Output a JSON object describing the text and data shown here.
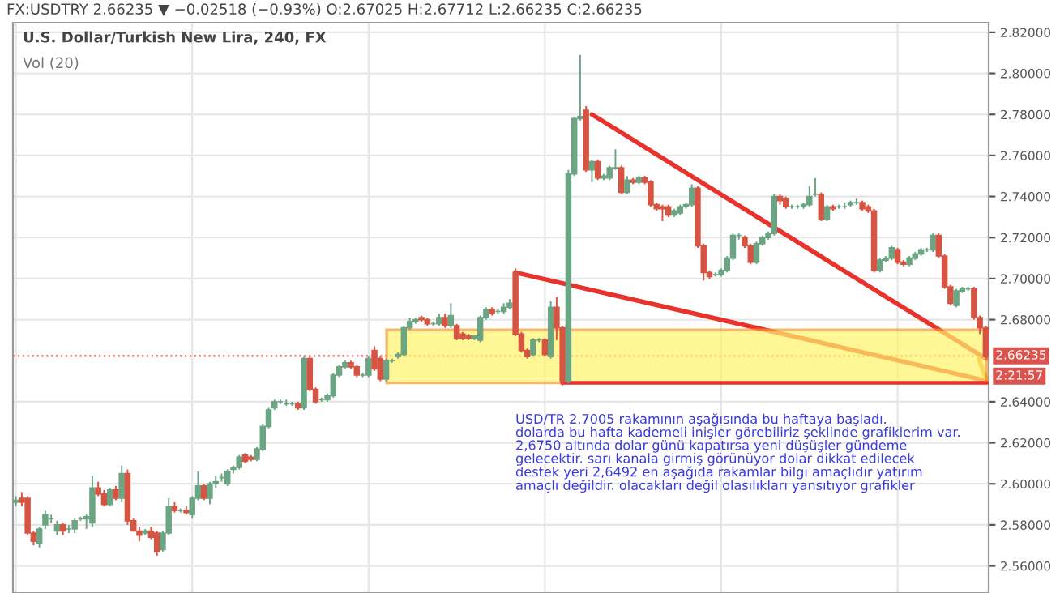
{
  "chart_data": {
    "type": "candlestick",
    "title": "U.S. Dollar/Turkish New Lira, 240, FX",
    "annotations": [
      "FX:USDTRY 2.66235 ▼ −0.02518 (−0.93%) O:2.67025 H:2.67712 L:2.66235 C:2.66235",
      "Vol (20)",
      "USD/TR 2.7005 rakamının aşağısında bu haftaya başladı.\ndolarda bu hafta kademeli inişler görebiliriz şeklinde grafiklerim var.\n2,6750 altında dolar günü kapatırsa yeni düşüşler gündeme\ngelecektir. sarı kanala girmiş görünüyor dolar dikkat edilecek\ndestek yeri 2,6492 en aşağıda rakamlar bilgi amaçlıdır yatırım\namaçlı değildir. olacakları değil olasılıkları yansıtıyor grafikler",
      "2:21:57"
    ],
    "categories": [
      null,
      null,
      null,
      null,
      null,
      null,
      null,
      null,
      null,
      null,
      null,
      null,
      null,
      null,
      null,
      null,
      null,
      null,
      null,
      null,
      null,
      null,
      null,
      null,
      null,
      null,
      null,
      null,
      null,
      null,
      null,
      null,
      null,
      null,
      null,
      null,
      null,
      null,
      null,
      null,
      null,
      null,
      null,
      null,
      null,
      null,
      null,
      null,
      null,
      null,
      null,
      null,
      null,
      null,
      null,
      null,
      null,
      null,
      null,
      null,
      null,
      null,
      null,
      null,
      null,
      null,
      null,
      null,
      null,
      null,
      null,
      null,
      null,
      null,
      null,
      null,
      null,
      null,
      null,
      null,
      null,
      null,
      null,
      null,
      null,
      null,
      null,
      null,
      null,
      null,
      null,
      null,
      null,
      null,
      null,
      null,
      null,
      null,
      null,
      null,
      null,
      null,
      null,
      null,
      null,
      null,
      null,
      null,
      null,
      null,
      null,
      null,
      null,
      null,
      null,
      null,
      null,
      null,
      null,
      null,
      null,
      null,
      null,
      null,
      null,
      null,
      null,
      null,
      null,
      null,
      null,
      null,
      null,
      null,
      null,
      null,
      null,
      null,
      null,
      null,
      null,
      null,
      null,
      null,
      null,
      null,
      null,
      null,
      null,
      null,
      null,
      null,
      null,
      null,
      null,
      null,
      null,
      null,
      null,
      null,
      null,
      null,
      null,
      null,
      null,
      null
    ],
    "ohlc": [
      [
        2.591,
        2.594,
        2.589,
        2.592
      ],
      [
        2.593,
        2.596,
        2.589,
        2.591
      ],
      [
        2.593,
        2.594,
        2.575,
        2.576
      ],
      [
        2.576,
        2.577,
        2.57,
        2.572
      ],
      [
        2.571,
        2.579,
        2.569,
        2.578
      ],
      [
        2.58,
        2.587,
        2.578,
        2.585
      ],
      [
        2.583,
        2.585,
        2.581,
        2.583
      ],
      [
        2.577,
        2.582,
        2.575,
        2.58
      ],
      [
        2.58,
        2.581,
        2.575,
        2.577
      ],
      [
        2.578,
        2.58,
        2.576,
        2.578
      ],
      [
        2.578,
        2.583,
        2.576,
        2.582
      ],
      [
        2.583,
        2.584,
        2.582,
        2.583
      ],
      [
        2.583,
        2.585,
        2.578,
        2.584
      ],
      [
        2.581,
        2.604,
        2.579,
        2.598
      ],
      [
        2.598,
        2.601,
        2.594,
        2.595
      ],
      [
        2.595,
        2.597,
        2.589,
        2.59
      ],
      [
        2.59,
        2.598,
        2.589,
        2.597
      ],
      [
        2.597,
        2.599,
        2.592,
        2.593
      ],
      [
        2.593,
        2.609,
        2.591,
        2.605
      ],
      [
        2.605,
        2.607,
        2.58,
        2.582
      ],
      [
        2.582,
        2.583,
        2.577,
        2.577
      ],
      [
        2.577,
        2.579,
        2.572,
        2.575
      ],
      [
        2.576,
        2.578,
        2.575,
        2.577
      ],
      [
        2.577,
        2.579,
        2.573,
        2.574
      ],
      [
        2.576,
        2.577,
        2.565,
        2.567
      ],
      [
        2.568,
        2.577,
        2.567,
        2.576
      ],
      [
        2.576,
        2.593,
        2.575,
        2.589
      ],
      [
        2.589,
        2.591,
        2.586,
        2.587
      ],
      [
        2.587,
        2.588,
        2.586,
        2.587
      ],
      [
        2.587,
        2.589,
        2.585,
        2.586
      ],
      [
        2.585,
        2.594,
        2.583,
        2.593
      ],
      [
        2.593,
        2.606,
        2.592,
        2.599
      ],
      [
        2.599,
        2.6,
        2.592,
        2.593
      ],
      [
        2.593,
        2.601,
        2.59,
        2.6
      ],
      [
        2.6,
        2.604,
        2.598,
        2.601
      ],
      [
        2.603,
        2.605,
        2.601,
        2.603
      ],
      [
        2.6,
        2.607,
        2.599,
        2.606
      ],
      [
        2.607,
        2.609,
        2.605,
        2.608
      ],
      [
        2.608,
        2.614,
        2.607,
        2.613
      ],
      [
        2.614,
        2.615,
        2.61,
        2.611
      ],
      [
        2.613,
        2.614,
        2.611,
        2.612
      ],
      [
        2.612,
        2.618,
        2.611,
        2.617
      ],
      [
        2.617,
        2.629,
        2.616,
        2.628
      ],
      [
        2.628,
        2.637,
        2.627,
        2.636
      ],
      [
        2.637,
        2.641,
        2.636,
        2.64
      ],
      [
        2.64,
        2.641,
        2.639,
        2.64
      ],
      [
        2.639,
        2.641,
        2.638,
        2.639
      ],
      [
        2.639,
        2.64,
        2.638,
        2.639
      ],
      [
        2.639,
        2.64,
        2.636,
        2.637
      ],
      [
        2.637,
        2.662,
        2.636,
        2.661
      ],
      [
        2.661,
        2.662,
        2.645,
        2.646
      ],
      [
        2.646,
        2.647,
        2.639,
        2.64
      ],
      [
        2.641,
        2.642,
        2.64,
        2.641
      ],
      [
        2.641,
        2.644,
        2.64,
        2.643
      ],
      [
        2.643,
        2.654,
        2.642,
        2.653
      ],
      [
        2.653,
        2.658,
        2.652,
        2.657
      ],
      [
        2.657,
        2.66,
        2.656,
        2.659
      ],
      [
        2.659,
        2.66,
        2.656,
        2.657
      ],
      [
        2.657,
        2.658,
        2.652,
        2.653
      ],
      [
        2.653,
        2.654,
        2.652,
        2.653
      ],
      [
        2.653,
        2.662,
        2.652,
        2.661
      ],
      [
        2.665,
        2.667,
        2.655,
        2.656
      ],
      [
        2.661,
        2.662,
        2.65,
        2.651
      ],
      [
        2.651,
        2.661,
        2.65,
        2.66
      ],
      [
        2.66,
        2.661,
        2.659,
        2.66
      ],
      [
        2.662,
        2.664,
        2.661,
        2.663
      ],
      [
        2.663,
        2.677,
        2.662,
        2.676
      ],
      [
        2.676,
        2.681,
        2.675,
        2.679
      ],
      [
        2.679,
        2.681,
        2.678,
        2.68
      ],
      [
        2.681,
        2.682,
        2.679,
        2.68
      ],
      [
        2.68,
        2.681,
        2.677,
        2.678
      ],
      [
        2.678,
        2.679,
        2.677,
        2.678
      ],
      [
        2.678,
        2.683,
        2.677,
        2.681
      ],
      [
        2.681,
        2.683,
        2.676,
        2.677
      ],
      [
        2.677,
        2.688,
        2.676,
        2.682
      ],
      [
        2.677,
        2.678,
        2.67,
        2.671
      ],
      [
        2.673,
        2.674,
        2.67,
        2.671
      ],
      [
        2.672,
        2.673,
        2.67,
        2.671
      ],
      [
        2.671,
        2.672,
        2.67,
        2.672
      ],
      [
        2.67,
        2.682,
        2.669,
        2.681
      ],
      [
        2.681,
        2.686,
        2.68,
        2.685
      ],
      [
        2.685,
        2.686,
        2.682,
        2.683
      ],
      [
        2.684,
        2.685,
        2.683,
        2.684
      ],
      [
        2.684,
        2.688,
        2.683,
        2.686
      ],
      [
        2.686,
        2.69,
        2.685,
        2.688
      ],
      [
        2.703,
        2.705,
        2.672,
        2.673
      ],
      [
        2.673,
        2.674,
        2.664,
        2.665
      ],
      [
        2.665,
        2.666,
        2.661,
        2.662
      ],
      [
        2.663,
        2.671,
        2.662,
        2.67
      ],
      [
        2.67,
        2.671,
        2.669,
        2.67
      ],
      [
        2.67,
        2.671,
        2.662,
        2.663
      ],
      [
        2.662,
        2.689,
        2.661,
        2.686
      ],
      [
        2.686,
        2.691,
        2.67,
        2.676
      ],
      [
        2.676,
        2.677,
        2.648,
        2.65
      ],
      [
        2.65,
        2.753,
        2.649,
        2.751
      ],
      [
        2.751,
        2.779,
        2.75,
        2.778
      ],
      [
        2.778,
        2.809,
        2.777,
        2.779
      ],
      [
        2.782,
        2.784,
        2.752,
        2.753
      ],
      [
        2.753,
        2.758,
        2.747,
        2.757
      ],
      [
        2.757,
        2.758,
        2.748,
        2.749
      ],
      [
        2.749,
        2.751,
        2.748,
        2.75
      ],
      [
        2.749,
        2.755,
        2.748,
        2.754
      ],
      [
        2.754,
        2.763,
        2.753,
        2.754
      ],
      [
        2.754,
        2.755,
        2.741,
        2.742
      ],
      [
        2.742,
        2.75,
        2.741,
        2.748
      ],
      [
        2.748,
        2.749,
        2.746,
        2.747
      ],
      [
        2.747,
        2.75,
        2.746,
        2.749
      ],
      [
        2.749,
        2.75,
        2.746,
        2.747
      ],
      [
        2.747,
        2.748,
        2.735,
        2.736
      ],
      [
        2.736,
        2.737,
        2.733,
        2.734
      ],
      [
        2.735,
        2.736,
        2.728,
        2.734
      ],
      [
        2.735,
        2.736,
        2.73,
        2.731
      ],
      [
        2.731,
        2.734,
        2.73,
        2.733
      ],
      [
        2.732,
        2.736,
        2.731,
        2.735
      ],
      [
        2.735,
        2.737,
        2.734,
        2.736
      ],
      [
        2.736,
        2.746,
        2.735,
        2.744
      ],
      [
        2.744,
        2.745,
        2.715,
        2.716
      ],
      [
        2.716,
        2.717,
        2.699,
        2.703
      ],
      [
        2.703,
        2.704,
        2.7,
        2.701
      ],
      [
        2.702,
        2.703,
        2.701,
        2.702
      ],
      [
        2.702,
        2.705,
        2.701,
        2.704
      ],
      [
        2.704,
        2.711,
        2.703,
        2.71
      ],
      [
        2.71,
        2.722,
        2.709,
        2.721
      ],
      [
        2.721,
        2.722,
        2.719,
        2.721
      ],
      [
        2.72,
        2.721,
        2.715,
        2.716
      ],
      [
        2.716,
        2.717,
        2.707,
        2.708
      ],
      [
        2.708,
        2.718,
        2.707,
        2.717
      ],
      [
        2.717,
        2.721,
        2.716,
        2.72
      ],
      [
        2.72,
        2.723,
        2.719,
        2.722
      ],
      [
        2.722,
        2.741,
        2.721,
        2.74
      ],
      [
        2.74,
        2.741,
        2.736,
        2.738
      ],
      [
        2.739,
        2.74,
        2.734,
        2.735
      ],
      [
        2.735,
        2.736,
        2.734,
        2.735
      ],
      [
        2.735,
        2.736,
        2.734,
        2.735
      ],
      [
        2.735,
        2.737,
        2.734,
        2.736
      ],
      [
        2.736,
        2.745,
        2.735,
        2.74
      ],
      [
        2.741,
        2.749,
        2.74,
        2.741
      ],
      [
        2.741,
        2.742,
        2.728,
        2.729
      ],
      [
        2.729,
        2.736,
        2.728,
        2.735
      ],
      [
        2.735,
        2.736,
        2.733,
        2.734
      ],
      [
        2.735,
        2.736,
        2.734,
        2.735
      ],
      [
        2.735,
        2.737,
        2.734,
        2.735
      ],
      [
        2.736,
        2.738,
        2.735,
        2.737
      ],
      [
        2.737,
        2.739,
        2.736,
        2.737
      ],
      [
        2.737,
        2.738,
        2.733,
        2.734
      ],
      [
        2.735,
        2.736,
        2.732,
        2.733
      ],
      [
        2.733,
        2.734,
        2.703,
        2.704
      ],
      [
        2.704,
        2.71,
        2.703,
        2.709
      ],
      [
        2.709,
        2.711,
        2.708,
        2.71
      ],
      [
        2.71,
        2.716,
        2.709,
        2.715
      ],
      [
        2.714,
        2.715,
        2.707,
        2.708
      ],
      [
        2.708,
        2.709,
        2.706,
        2.707
      ],
      [
        2.707,
        2.711,
        2.706,
        2.71
      ],
      [
        2.71,
        2.713,
        2.709,
        2.712
      ],
      [
        2.712,
        2.715,
        2.711,
        2.714
      ],
      [
        2.714,
        2.715,
        2.713,
        2.714
      ],
      [
        2.714,
        2.722,
        2.713,
        2.721
      ],
      [
        2.721,
        2.722,
        2.71,
        2.711
      ],
      [
        2.711,
        2.712,
        2.695,
        2.696
      ],
      [
        2.696,
        2.697,
        2.687,
        2.688
      ],
      [
        2.687,
        2.695,
        2.686,
        2.694
      ],
      [
        2.694,
        2.696,
        2.693,
        2.695
      ],
      [
        2.695,
        2.696,
        2.694,
        2.695
      ],
      [
        2.695,
        2.696,
        2.68,
        2.681
      ],
      [
        2.681,
        2.682,
        2.673,
        2.676
      ],
      [
        2.676,
        2.677,
        2.661,
        2.662
      ]
    ],
    "series": [
      {
        "type": "line",
        "color": "#e8322b",
        "values": [
          null,
          null,
          null,
          null,
          null,
          null,
          null,
          null,
          null,
          null,
          null,
          null,
          null,
          null,
          null,
          null,
          null,
          null,
          null,
          null,
          null,
          null,
          null,
          null,
          null,
          null,
          null,
          null,
          null,
          null,
          null,
          null,
          null,
          null,
          null,
          null,
          null,
          null,
          null,
          null,
          null,
          null,
          null,
          null,
          null,
          null,
          null,
          null,
          null,
          null,
          null,
          null,
          null,
          null,
          null,
          null,
          null,
          null,
          null,
          null,
          null,
          null,
          null,
          null,
          null,
          null,
          null,
          null,
          null,
          null,
          null,
          null,
          null,
          null,
          null,
          null,
          null,
          null,
          null,
          null,
          null,
          null,
          null,
          null,
          null,
          null,
          null,
          null,
          null,
          null,
          null,
          null,
          null,
          null,
          null,
          null,
          null,
          null,
          2.78,
          null,
          null,
          null,
          null,
          null,
          null,
          null,
          null,
          null,
          null,
          null,
          null,
          null,
          null,
          null,
          null,
          null,
          null,
          null,
          null,
          null,
          null,
          null,
          null,
          null,
          null,
          null,
          null,
          null,
          null,
          null,
          null,
          null,
          null,
          null,
          null,
          null,
          null,
          null,
          null,
          null,
          null,
          null,
          null,
          null,
          null,
          null,
          null,
          null,
          null,
          null,
          null,
          null,
          null,
          null,
          null,
          null,
          null,
          null,
          null,
          null,
          null,
          null,
          null,
          null,
          null,
          2.661
        ]
      }
    ],
    "bands": [
      {
        "axis": "y",
        "from": 2.6492,
        "to": 2.675,
        "color": "#fff36b"
      }
    ],
    "ref_lines": [
      {
        "axis": "y",
        "value": 2.66235,
        "label": "2.66235",
        "color": "#d9534f",
        "line_style": "dotted"
      }
    ],
    "ylim": [
      2.5468,
      2.8247
    ],
    "yticks": [
      {
        "value": 2.82,
        "label": "2.82000"
      },
      {
        "value": 2.8,
        "label": "2.80000"
      },
      {
        "value": 2.78,
        "label": "2.78000"
      },
      {
        "value": 2.76,
        "label": "2.76000"
      },
      {
        "value": 2.74,
        "label": "2.74000"
      },
      {
        "value": 2.72,
        "label": "2.72000"
      },
      {
        "value": 2.7,
        "label": "2.70000"
      },
      {
        "value": 2.68,
        "label": "2.68000"
      },
      {
        "value": 2.64,
        "label": "2.64000"
      },
      {
        "value": 2.62,
        "label": "2.62000"
      },
      {
        "value": 2.6,
        "label": "2.60000"
      },
      {
        "value": 2.58,
        "label": "2.58000"
      },
      {
        "value": 2.56,
        "label": "2.56000"
      }
    ],
    "grid": true,
    "tick_labels": "y"
  }
}
